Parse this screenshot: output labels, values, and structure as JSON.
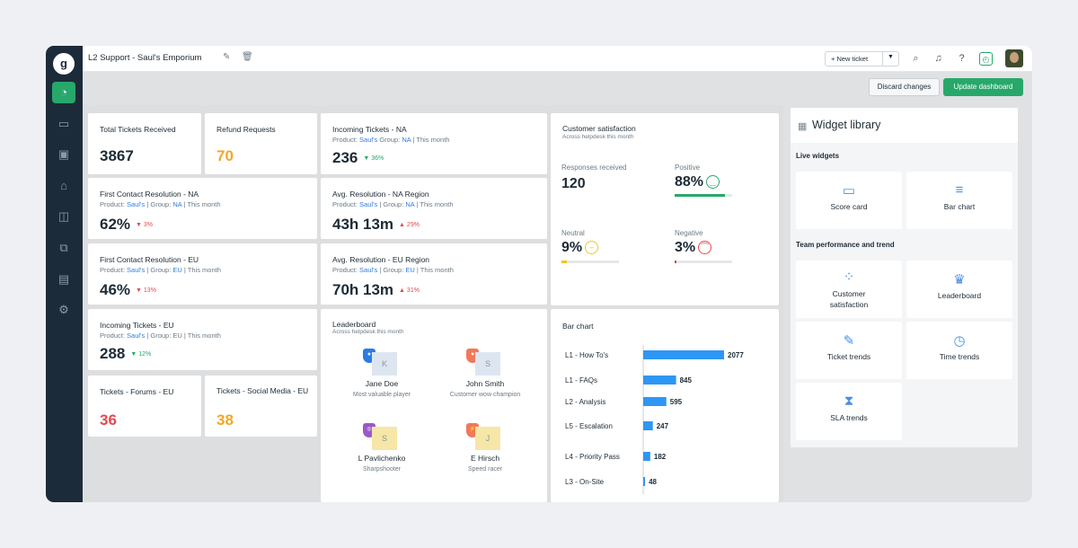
{
  "header": {
    "title": "L2 Support - Saul's Emporium",
    "new_ticket": "+ New ticket"
  },
  "actions": {
    "discard": "Discard changes",
    "update": "Update dashboard"
  },
  "sidebar": {
    "logo": "g",
    "items": [
      "dashboard-icon",
      "inbox-icon",
      "contacts-icon",
      "alert-icon",
      "book-icon",
      "chat-icon",
      "reports-icon",
      "settings-icon"
    ]
  },
  "cards": {
    "total": {
      "title": "Total Tickets Received",
      "value": "3867"
    },
    "refund": {
      "title": "Refund Requests",
      "value": "70"
    },
    "fcr_na": {
      "title": "First Contact Resolution - NA",
      "product_label": "Product:",
      "product": "Saul's",
      "group_label": "| Group:",
      "group": "NA",
      "period": "| This month",
      "value": "62%",
      "change": "▼ 3%"
    },
    "fcr_eu": {
      "title": "First Contact Resolution - EU",
      "product_label": "Product:",
      "product": "Saul's",
      "group_label": "| Group:",
      "group": "EU",
      "period": "| This month",
      "value": "46%",
      "change": "▼ 13%"
    },
    "incoming_eu": {
      "title": "Incoming Tickets - EU",
      "product_label": "Product:",
      "product": "Saul's",
      "group_label": "| Group:",
      "group": "EU",
      "period": "| This month",
      "value": "288",
      "change": "▼ 12%"
    },
    "forums": {
      "title": "Tickets - Forums - EU",
      "value": "36"
    },
    "social": {
      "title": "Tickets - Social Media - EU",
      "value": "38"
    },
    "incoming_na": {
      "title": "Incoming Tickets - NA",
      "product_label": "Product:",
      "product": "Saul's",
      "group_label": "Group:",
      "group": "NA",
      "period": "| This month",
      "value": "236",
      "change": "▼ 36%"
    },
    "avg_na": {
      "title": "Avg. Resolution - NA Region",
      "product_label": "Product:",
      "product": "Saul's",
      "group_label": "| Group:",
      "group": "NA",
      "period": "| This month",
      "value": "43h 13m",
      "change": "▲ 29%"
    },
    "avg_eu": {
      "title": "Avg. Resolution - EU Region",
      "product_label": "Product:",
      "product": "Saul's",
      "group_label": "| Group:",
      "group": "EU",
      "period": "| This month",
      "value": "70h 13m",
      "change": "▲ 31%"
    }
  },
  "leaderboard": {
    "title": "Leaderboard",
    "subtitle": "Across helpdesk this month",
    "people": [
      {
        "name": "Jane Doe",
        "title": "Most valuable player",
        "initial": "K",
        "color": "#2c7be5"
      },
      {
        "name": "John Smith",
        "title": "Customer wow champion",
        "initial": "S",
        "color": "#f0795a"
      },
      {
        "name": "L Pavlichenko",
        "title": "Sharpshooter",
        "initial": "S",
        "color": "#9b59c9"
      },
      {
        "name": "E Hirsch",
        "title": "Speed racer",
        "initial": "J",
        "color": "#f0795a"
      }
    ]
  },
  "satisfaction": {
    "title": "Customer satisfaction",
    "subtitle": "Across helpdesk this month",
    "responses_label": "Responses received",
    "responses": "120",
    "positive_label": "Positive",
    "positive": "88%",
    "positive_fill": 0.88,
    "neutral_label": "Neutral",
    "neutral": "9%",
    "neutral_fill": 0.09,
    "negative_label": "Negative",
    "negative": "3%",
    "negative_fill": 0.03
  },
  "chart_data": {
    "type": "bar",
    "title": "Bar chart",
    "categories": [
      "L1 - How To's",
      "L1 - FAQs",
      "L2 - Analysis",
      "L5 - Escalation",
      "L4 - Priority Pass",
      "L3 - On-Site"
    ],
    "values": [
      2077,
      845,
      595,
      247,
      182,
      48
    ],
    "color": "#2e96f5"
  },
  "library": {
    "title": "Widget library",
    "live_label": "Live widgets",
    "team_label": "Team performance and trend",
    "live": [
      {
        "label": "Score card",
        "icon": "scorecard-icon"
      },
      {
        "label": "Bar chart",
        "icon": "barchart-icon"
      }
    ],
    "team": [
      {
        "label": "Customer satisfaction",
        "icon": "satisfaction-icon"
      },
      {
        "label": "Leaderboard",
        "icon": "trophy-icon"
      },
      {
        "label": "Ticket trends",
        "icon": "ticket-trends-icon"
      },
      {
        "label": "Time trends",
        "icon": "stopwatch-icon"
      },
      {
        "label": "SLA trends",
        "icon": "hourglass-icon"
      }
    ]
  }
}
